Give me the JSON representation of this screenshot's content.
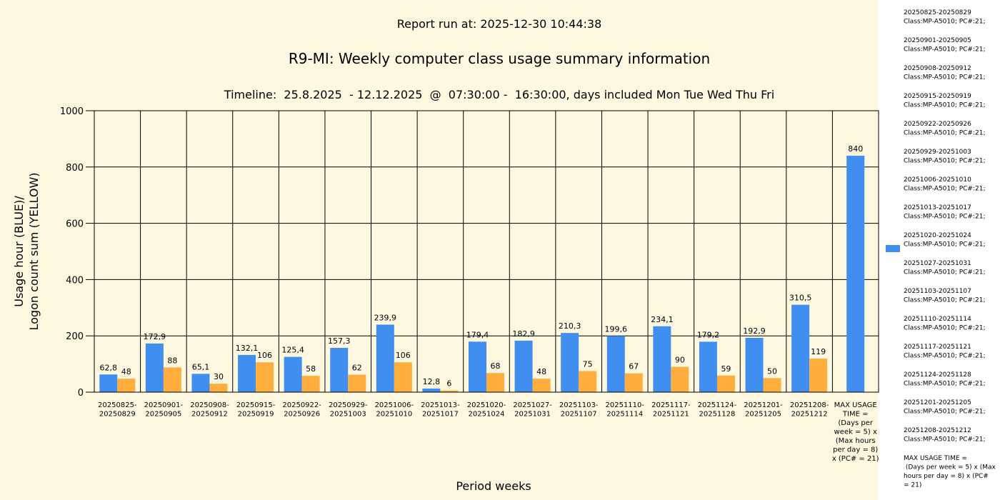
{
  "report_run": "Report run at: 2025-12-30 10:44:38",
  "chart_data": {
    "type": "bar",
    "title": "R9-MI: Weekly computer class usage summary information",
    "subtitle": "Timeline:  25.8.2025  - 12.12.2025  @  07:30:00 -  16:30:00, days included Mon Tue Wed Thu Fri",
    "xlabel": "Period weeks",
    "ylabel_line1": "Usage hour (BLUE)/",
    "ylabel_line2": "Logon count sum (YELLOW)",
    "ylim": [
      0,
      1000
    ],
    "yticks": [
      0,
      200,
      400,
      600,
      800,
      1000
    ],
    "grid": true,
    "legend_position": "right",
    "colors": {
      "usage": "#3F8EF0",
      "logon": "#FFAE3E",
      "background": "#FFF8E1",
      "legend_panel": "#FFFFFF"
    },
    "categories": [
      [
        "20250825-",
        "20250829"
      ],
      [
        "20250901-",
        "20250905"
      ],
      [
        "20250908-",
        "20250912"
      ],
      [
        "20250915-",
        "20250919"
      ],
      [
        "20250922-",
        "20250926"
      ],
      [
        "20250929-",
        "20251003"
      ],
      [
        "20251006-",
        "20251010"
      ],
      [
        "20251013-",
        "20251017"
      ],
      [
        "20251020-",
        "20251024"
      ],
      [
        "20251027-",
        "20251031"
      ],
      [
        "20251103-",
        "20251107"
      ],
      [
        "20251110-",
        "20251114"
      ],
      [
        "20251117-",
        "20251121"
      ],
      [
        "20251124-",
        "20251128"
      ],
      [
        "20251201-",
        "20251205"
      ],
      [
        "20251208-",
        "20251212"
      ],
      [
        "MAX USAGE",
        "TIME =",
        "(Days per",
        "week = 5) x",
        "(Max hours",
        "per day = 8)",
        "x (PC# = 21)"
      ]
    ],
    "series": [
      {
        "key": "usage",
        "values": [
          62.8,
          172.9,
          65.1,
          132.1,
          125.4,
          157.3,
          239.9,
          12.8,
          179.4,
          182.9,
          210.3,
          199.6,
          234.1,
          179.2,
          192.9,
          310.5,
          840
        ],
        "labels": [
          "62,8",
          "172,9",
          "65,1",
          "132,1",
          "125,4",
          "157,3",
          "239,9",
          "12,8",
          "179,4",
          "182,9",
          "210,3",
          "199,6",
          "234,1",
          "179,2",
          "192,9",
          "310,5",
          "840"
        ]
      },
      {
        "key": "logon",
        "values": [
          48,
          88,
          30,
          106,
          58,
          62,
          106,
          6,
          68,
          48,
          75,
          67,
          90,
          59,
          50,
          119,
          null
        ],
        "labels": [
          "48",
          "88",
          "30",
          "106",
          "58",
          "62",
          "106",
          "6",
          "68",
          "48",
          "75",
          "67",
          "90",
          "59",
          "50",
          "119",
          null
        ]
      }
    ]
  },
  "legend": {
    "entries": [
      [
        "20250825-20250829",
        "Class:MP-A5010; PC#:21;"
      ],
      [
        "20250901-20250905",
        "Class:MP-A5010; PC#:21;"
      ],
      [
        "20250908-20250912",
        "Class:MP-A5010; PC#:21;"
      ],
      [
        "20250915-20250919",
        "Class:MP-A5010; PC#:21;"
      ],
      [
        "20250922-20250926",
        "Class:MP-A5010; PC#:21;"
      ],
      [
        "20250929-20251003",
        "Class:MP-A5010; PC#:21;"
      ],
      [
        "20251006-20251010",
        "Class:MP-A5010; PC#:21;"
      ],
      [
        "20251013-20251017",
        "Class:MP-A5010; PC#:21;"
      ],
      [
        "20251020-20251024",
        "Class:MP-A5010; PC#:21;"
      ],
      [
        "20251027-20251031",
        "Class:MP-A5010; PC#:21;"
      ],
      [
        "20251103-20251107",
        "Class:MP-A5010; PC#:21;"
      ],
      [
        "20251110-20251114",
        "Class:MP-A5010; PC#:21;"
      ],
      [
        "20251117-20251121",
        "Class:MP-A5010; PC#:21;"
      ],
      [
        "20251124-20251128",
        "Class:MP-A5010; PC#:21;"
      ],
      [
        "20251201-20251205",
        "Class:MP-A5010; PC#:21;"
      ],
      [
        "20251208-20251212",
        "Class:MP-A5010; PC#:21;"
      ],
      [
        "MAX USAGE TIME =",
        " (Days per week = 5) x (Max",
        "hours per day = 8) x (PC#",
        "= 21)"
      ]
    ]
  }
}
